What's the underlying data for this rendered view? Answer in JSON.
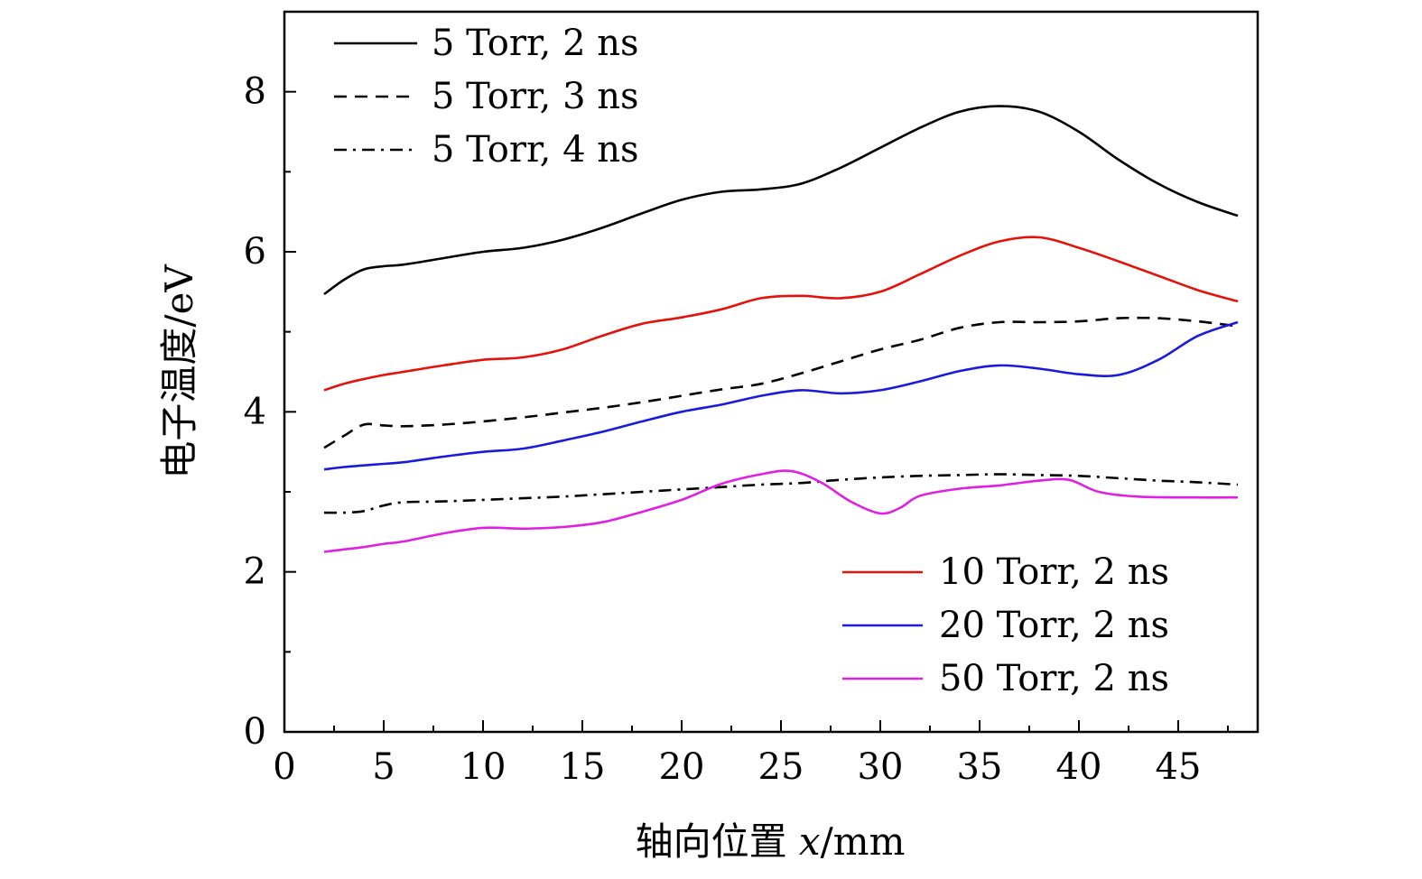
{
  "chart_data": {
    "type": "line",
    "xlabel": "轴向位置 x/mm",
    "xlabel_prefix": "轴向位置 ",
    "xlabel_var": "x",
    "xlabel_unit": "/mm",
    "ylabel": "电子温度/eV",
    "xlim": [
      0,
      49
    ],
    "ylim": [
      0,
      9
    ],
    "xticks": [
      0,
      5,
      10,
      15,
      20,
      25,
      30,
      35,
      40,
      45
    ],
    "yticks": [
      0,
      2,
      4,
      6,
      8
    ],
    "x_minor_step": 2.5,
    "y_minor_step": 1,
    "series": [
      {
        "name": "5 Torr, 2 ns",
        "color": "#000000",
        "dash": "solid",
        "x": [
          2,
          3,
          4,
          5,
          6,
          8,
          10,
          12,
          14,
          16,
          18,
          20,
          22,
          24,
          26,
          28,
          30,
          32,
          34,
          36,
          38,
          40,
          42,
          44,
          46,
          48
        ],
        "y": [
          5.47,
          5.65,
          5.78,
          5.82,
          5.84,
          5.92,
          6.0,
          6.05,
          6.15,
          6.3,
          6.48,
          6.65,
          6.75,
          6.78,
          6.85,
          7.05,
          7.3,
          7.55,
          7.75,
          7.82,
          7.75,
          7.5,
          7.15,
          6.85,
          6.62,
          6.45
        ]
      },
      {
        "name": "5 Torr, 3 ns",
        "color": "#000000",
        "dash": "dashed",
        "x": [
          2,
          3,
          4,
          5,
          6,
          8,
          10,
          12,
          14,
          16,
          18,
          20,
          22,
          24,
          26,
          28,
          30,
          32,
          34,
          36,
          38,
          40,
          42,
          44,
          46,
          48
        ],
        "y": [
          3.55,
          3.7,
          3.84,
          3.83,
          3.82,
          3.84,
          3.88,
          3.93,
          3.99,
          4.05,
          4.12,
          4.2,
          4.28,
          4.35,
          4.48,
          4.63,
          4.78,
          4.9,
          5.05,
          5.12,
          5.12,
          5.13,
          5.17,
          5.17,
          5.13,
          5.07
        ]
      },
      {
        "name": "5 Torr, 4 ns",
        "color": "#000000",
        "dash": "dashdot",
        "x": [
          2,
          3,
          4,
          5,
          6,
          8,
          10,
          12,
          14,
          16,
          18,
          20,
          22,
          24,
          26,
          28,
          30,
          32,
          34,
          36,
          38,
          40,
          42,
          44,
          46,
          48
        ],
        "y": [
          2.74,
          2.74,
          2.76,
          2.83,
          2.87,
          2.88,
          2.9,
          2.92,
          2.94,
          2.97,
          3.0,
          3.03,
          3.06,
          3.09,
          3.11,
          3.15,
          3.18,
          3.2,
          3.21,
          3.22,
          3.21,
          3.2,
          3.17,
          3.14,
          3.12,
          3.09
        ]
      },
      {
        "name": "10 Torr, 2 ns",
        "color": "#e3120b",
        "dash": "solid",
        "x": [
          2,
          3,
          4,
          5,
          6,
          8,
          10,
          12,
          14,
          16,
          18,
          20,
          22,
          24,
          26,
          28,
          30,
          32,
          34,
          36,
          38,
          40,
          42,
          44,
          46,
          48
        ],
        "y": [
          4.27,
          4.35,
          4.41,
          4.46,
          4.5,
          4.58,
          4.65,
          4.68,
          4.78,
          4.95,
          5.1,
          5.18,
          5.28,
          5.42,
          5.45,
          5.42,
          5.5,
          5.72,
          5.95,
          6.13,
          6.18,
          6.05,
          5.88,
          5.7,
          5.52,
          5.38
        ]
      },
      {
        "name": "20 Torr, 2 ns",
        "color": "#1a1adb",
        "dash": "solid",
        "x": [
          2,
          3,
          4,
          5,
          6,
          8,
          10,
          12,
          14,
          16,
          18,
          20,
          22,
          24,
          26,
          28,
          30,
          32,
          34,
          36,
          38,
          40,
          42,
          44,
          46,
          48
        ],
        "y": [
          3.28,
          3.31,
          3.33,
          3.35,
          3.37,
          3.44,
          3.5,
          3.54,
          3.64,
          3.75,
          3.88,
          4.0,
          4.09,
          4.2,
          4.27,
          4.23,
          4.27,
          4.38,
          4.51,
          4.58,
          4.54,
          4.47,
          4.46,
          4.65,
          4.95,
          5.12
        ]
      },
      {
        "name": "50 Torr, 2 ns",
        "color": "#e020e0",
        "dash": "solid",
        "x": [
          2,
          3,
          4,
          5,
          6,
          8,
          10,
          12,
          14,
          16,
          18,
          20,
          22,
          24,
          25.5,
          27,
          28.5,
          30,
          31,
          32,
          34,
          36,
          38,
          39.5,
          41,
          43,
          46,
          48
        ],
        "y": [
          2.25,
          2.28,
          2.31,
          2.35,
          2.38,
          2.48,
          2.55,
          2.54,
          2.56,
          2.62,
          2.75,
          2.9,
          3.1,
          3.22,
          3.26,
          3.12,
          2.88,
          2.73,
          2.8,
          2.95,
          3.04,
          3.08,
          3.14,
          3.15,
          3.0,
          2.94,
          2.93,
          2.93
        ]
      }
    ]
  }
}
